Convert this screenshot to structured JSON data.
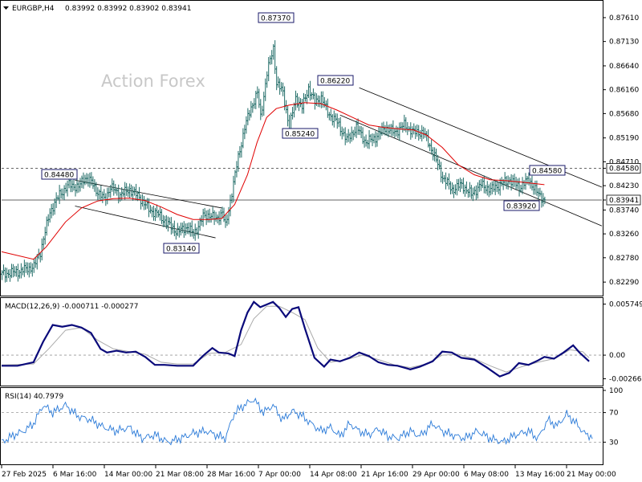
{
  "watermark": "Action Forex",
  "header": {
    "symbol": "EURGBP,H4",
    "ohlc": "0.83992 0.83992 0.83902 0.83941"
  },
  "chart_data": [
    {
      "type": "candlestick",
      "title": "EURGBP,H4 0.83992 0.83992 0.83902 0.83941",
      "yticks": [
        "0.87610",
        "0.87130",
        "0.86640",
        "0.86160",
        "0.85680",
        "0.85190",
        "0.84710",
        "0.84230",
        "0.83740",
        "0.83260",
        "0.82780",
        "0.82290"
      ],
      "ylim": [
        0.8205,
        0.879
      ],
      "xticks": [
        "27 Feb 2025",
        "6 Mar 16:00",
        "14 Mar 00:00",
        "21 Mar 08:00",
        "28 Mar 16:00",
        "7 Apr 00:00",
        "14 Apr 08:00",
        "21 Apr 16:00",
        "29 Apr 00:00",
        "6 May 08:00",
        "13 May 16:00",
        "21 May 00:00"
      ],
      "key_levels": [
        {
          "label": "0.84480",
          "value": 0.8448,
          "at": "6 Mar 16:00"
        },
        {
          "label": "0.83140",
          "value": 0.8314,
          "at": "21 Mar 08:00"
        },
        {
          "label": "0.87370",
          "value": 0.8737,
          "at": "7 Apr 00:00"
        },
        {
          "label": "0.85240",
          "value": 0.8524,
          "at": "14 Apr 08:00"
        },
        {
          "label": "0.86220",
          "value": 0.8622,
          "at": "14 Apr 08:00"
        },
        {
          "label": "0.83920",
          "value": 0.8392,
          "at": "13 May 16:00"
        },
        {
          "label": "0.84580",
          "value": 0.8458,
          "at": "13 May 16:00"
        }
      ],
      "horizontal_lines": [
        {
          "label": "0.84580",
          "value": 0.8458,
          "style": "dashed"
        },
        {
          "label": "0.83941",
          "value": 0.83941,
          "style": "solid"
        }
      ],
      "close_path": [
        [
          0,
          0.8245
        ],
        [
          10,
          0.825
        ],
        [
          20,
          0.826
        ],
        [
          24,
          0.829
        ],
        [
          30,
          0.837
        ],
        [
          36,
          0.8405
        ],
        [
          42,
          0.8425
        ],
        [
          48,
          0.842
        ],
        [
          52,
          0.844
        ],
        [
          56,
          0.843
        ],
        [
          60,
          0.841
        ],
        [
          64,
          0.8395
        ],
        [
          68,
          0.842
        ],
        [
          74,
          0.8405
        ],
        [
          80,
          0.8415
        ],
        [
          86,
          0.84
        ],
        [
          92,
          0.8375
        ],
        [
          98,
          0.8365
        ],
        [
          104,
          0.8345
        ],
        [
          110,
          0.833
        ],
        [
          116,
          0.834
        ],
        [
          120,
          0.8325
        ],
        [
          126,
          0.836
        ],
        [
          130,
          0.8365
        ],
        [
          134,
          0.8355
        ],
        [
          138,
          0.837
        ],
        [
          140,
          0.834
        ],
        [
          144,
          0.841
        ],
        [
          148,
          0.848
        ],
        [
          152,
          0.854
        ],
        [
          156,
          0.858
        ],
        [
          160,
          0.861
        ],
        [
          162,
          0.856
        ],
        [
          166,
          0.865
        ],
        [
          170,
          0.87
        ],
        [
          172,
          0.863
        ],
        [
          176,
          0.861
        ],
        [
          180,
          0.854
        ],
        [
          184,
          0.86
        ],
        [
          188,
          0.858
        ],
        [
          192,
          0.862
        ],
        [
          196,
          0.859
        ],
        [
          200,
          0.86
        ],
        [
          204,
          0.857
        ],
        [
          210,
          0.855
        ],
        [
          216,
          0.8515
        ],
        [
          222,
          0.854
        ],
        [
          228,
          0.851
        ],
        [
          234,
          0.852
        ],
        [
          240,
          0.854
        ],
        [
          246,
          0.853
        ],
        [
          252,
          0.8545
        ],
        [
          258,
          0.853
        ],
        [
          264,
          0.853
        ],
        [
          270,
          0.849
        ],
        [
          276,
          0.844
        ],
        [
          282,
          0.8415
        ],
        [
          288,
          0.8425
        ],
        [
          294,
          0.8405
        ],
        [
          300,
          0.8425
        ],
        [
          306,
          0.8415
        ],
        [
          312,
          0.8425
        ],
        [
          318,
          0.8435
        ],
        [
          324,
          0.842
        ],
        [
          330,
          0.8435
        ],
        [
          336,
          0.8405
        ],
        [
          340,
          0.8394
        ]
      ],
      "ma_path": [
        [
          0,
          0.829
        ],
        [
          20,
          0.8275
        ],
        [
          28,
          0.83
        ],
        [
          40,
          0.835
        ],
        [
          50,
          0.8378
        ],
        [
          60,
          0.8392
        ],
        [
          70,
          0.8397
        ],
        [
          80,
          0.8398
        ],
        [
          90,
          0.8393
        ],
        [
          100,
          0.838
        ],
        [
          110,
          0.8365
        ],
        [
          120,
          0.8355
        ],
        [
          130,
          0.8355
        ],
        [
          138,
          0.8357
        ],
        [
          146,
          0.8385
        ],
        [
          154,
          0.8445
        ],
        [
          160,
          0.851
        ],
        [
          166,
          0.856
        ],
        [
          172,
          0.8578
        ],
        [
          180,
          0.8585
        ],
        [
          190,
          0.859
        ],
        [
          200,
          0.8588
        ],
        [
          210,
          0.8575
        ],
        [
          220,
          0.856
        ],
        [
          230,
          0.8545
        ],
        [
          240,
          0.854
        ],
        [
          250,
          0.8537
        ],
        [
          258,
          0.8535
        ],
        [
          266,
          0.8525
        ],
        [
          276,
          0.85
        ],
        [
          286,
          0.8465
        ],
        [
          296,
          0.8445
        ],
        [
          306,
          0.8435
        ],
        [
          316,
          0.8433
        ],
        [
          326,
          0.843
        ],
        [
          340,
          0.8425
        ]
      ],
      "upper_channel_1": [
        [
          0.8434,
          46
        ],
        [
          0.8378,
          138
        ]
      ],
      "lower_channel_1": [
        [
          0.8382,
          46
        ],
        [
          0.8318,
          134
        ]
      ],
      "upper_channel_2": [
        [
          0.862,
          224
        ],
        [
          0.842,
          376
        ]
      ],
      "lower_channel_2": [
        [
          0.8565,
          212
        ],
        [
          0.8342,
          376
        ]
      ]
    },
    {
      "type": "line",
      "title": "MACD(12,26,9) -0.000711 -0.000277",
      "yticks": [
        "0.005749",
        "0.00",
        "-0.002663"
      ],
      "ylim": [
        -0.00325,
        0.00625
      ],
      "macd_path": [
        [
          0,
          -0.0012
        ],
        [
          10,
          -0.0012
        ],
        [
          20,
          -0.0008
        ],
        [
          26,
          0.0015
        ],
        [
          32,
          0.0034
        ],
        [
          38,
          0.0032
        ],
        [
          44,
          0.0034
        ],
        [
          50,
          0.0031
        ],
        [
          56,
          0.0025
        ],
        [
          62,
          0.0007
        ],
        [
          66,
          0.0003
        ],
        [
          72,
          0.0005
        ],
        [
          78,
          0.0003
        ],
        [
          84,
          0.0004
        ],
        [
          90,
          -0.0002
        ],
        [
          96,
          -0.0011
        ],
        [
          102,
          -0.0011
        ],
        [
          110,
          -0.0012
        ],
        [
          120,
          -0.0012
        ],
        [
          126,
          -0.0001
        ],
        [
          132,
          0.0008
        ],
        [
          136,
          0.0003
        ],
        [
          142,
          0.0002
        ],
        [
          146,
          -0.0001
        ],
        [
          150,
          0.0028
        ],
        [
          154,
          0.0048
        ],
        [
          158,
          0.006
        ],
        [
          162,
          0.0054
        ],
        [
          166,
          0.0057
        ],
        [
          170,
          0.006
        ],
        [
          174,
          0.0053
        ],
        [
          178,
          0.0043
        ],
        [
          182,
          0.0052
        ],
        [
          186,
          0.0054
        ],
        [
          190,
          0.003
        ],
        [
          196,
          -0.0003
        ],
        [
          202,
          -0.0013
        ],
        [
          206,
          -0.0005
        ],
        [
          212,
          -0.0007
        ],
        [
          218,
          -0.0003
        ],
        [
          224,
          0.0003
        ],
        [
          230,
          -0.0001
        ],
        [
          236,
          -0.0008
        ],
        [
          242,
          -0.0011
        ],
        [
          248,
          -0.0012
        ],
        [
          256,
          -0.0016
        ],
        [
          262,
          -0.0013
        ],
        [
          270,
          -0.0007
        ],
        [
          276,
          0.0004
        ],
        [
          282,
          0.0003
        ],
        [
          288,
          -0.0003
        ],
        [
          296,
          -0.0005
        ],
        [
          304,
          -0.0014
        ],
        [
          312,
          -0.0024
        ],
        [
          318,
          -0.002
        ],
        [
          324,
          -0.0009
        ],
        [
          330,
          -0.0011
        ],
        [
          336,
          -0.0006
        ],
        [
          340,
          -0.0002
        ],
        [
          346,
          -0.0004
        ],
        [
          352,
          0.0003
        ],
        [
          358,
          0.0011
        ],
        [
          362,
          0.0003
        ],
        [
          368,
          -0.0007
        ]
      ],
      "signal_path": [
        [
          0,
          -0.0011
        ],
        [
          20,
          -0.001
        ],
        [
          30,
          0.0008
        ],
        [
          40,
          0.0028
        ],
        [
          50,
          0.0031
        ],
        [
          60,
          0.0017
        ],
        [
          70,
          0.0007
        ],
        [
          80,
          0.0004
        ],
        [
          90,
          0.0001
        ],
        [
          100,
          -0.0008
        ],
        [
          110,
          -0.001
        ],
        [
          120,
          -0.001
        ],
        [
          130,
          0.0002
        ],
        [
          140,
          0.0003
        ],
        [
          150,
          0.0012
        ],
        [
          158,
          0.0041
        ],
        [
          166,
          0.0055
        ],
        [
          174,
          0.0055
        ],
        [
          182,
          0.0048
        ],
        [
          190,
          0.004
        ],
        [
          198,
          0.0008
        ],
        [
          206,
          -0.0008
        ],
        [
          216,
          -0.0005
        ],
        [
          226,
          0.0
        ],
        [
          236,
          -0.0005
        ],
        [
          246,
          -0.0011
        ],
        [
          256,
          -0.0014
        ],
        [
          266,
          -0.001
        ],
        [
          276,
          0.0
        ],
        [
          286,
          0.0001
        ],
        [
          296,
          -0.0004
        ],
        [
          306,
          -0.0012
        ],
        [
          316,
          -0.0019
        ],
        [
          326,
          -0.0013
        ],
        [
          336,
          -0.0008
        ],
        [
          346,
          -0.0004
        ],
        [
          356,
          0.0006
        ],
        [
          364,
          0.0004
        ],
        [
          368,
          -0.0003
        ]
      ]
    },
    {
      "type": "line",
      "title": "RSI(14) 40.7979",
      "yticks": [
        "100",
        "70",
        "30"
      ],
      "ylim": [
        0,
        100
      ],
      "levels": [
        70,
        30
      ],
      "rsi_path": [
        [
          0,
          30
        ],
        [
          8,
          40
        ],
        [
          14,
          45
        ],
        [
          20,
          55
        ],
        [
          26,
          80
        ],
        [
          32,
          70
        ],
        [
          40,
          80
        ],
        [
          48,
          65
        ],
        [
          56,
          60
        ],
        [
          64,
          50
        ],
        [
          72,
          45
        ],
        [
          80,
          50
        ],
        [
          88,
          35
        ],
        [
          96,
          40
        ],
        [
          104,
          30
        ],
        [
          112,
          35
        ],
        [
          120,
          42
        ],
        [
          128,
          45
        ],
        [
          134,
          40
        ],
        [
          140,
          35
        ],
        [
          146,
          70
        ],
        [
          152,
          80
        ],
        [
          158,
          88
        ],
        [
          164,
          70
        ],
        [
          170,
          80
        ],
        [
          176,
          60
        ],
        [
          182,
          72
        ],
        [
          188,
          66
        ],
        [
          194,
          55
        ],
        [
          200,
          45
        ],
        [
          206,
          50
        ],
        [
          212,
          38
        ],
        [
          218,
          55
        ],
        [
          224,
          45
        ],
        [
          230,
          40
        ],
        [
          236,
          48
        ],
        [
          242,
          38
        ],
        [
          248,
          35
        ],
        [
          256,
          45
        ],
        [
          262,
          38
        ],
        [
          270,
          55
        ],
        [
          276,
          45
        ],
        [
          282,
          40
        ],
        [
          290,
          35
        ],
        [
          298,
          45
        ],
        [
          306,
          35
        ],
        [
          314,
          30
        ],
        [
          322,
          40
        ],
        [
          330,
          45
        ],
        [
          336,
          35
        ],
        [
          342,
          60
        ],
        [
          348,
          52
        ],
        [
          354,
          68
        ],
        [
          360,
          55
        ],
        [
          366,
          40
        ],
        [
          370,
          38
        ]
      ]
    }
  ]
}
